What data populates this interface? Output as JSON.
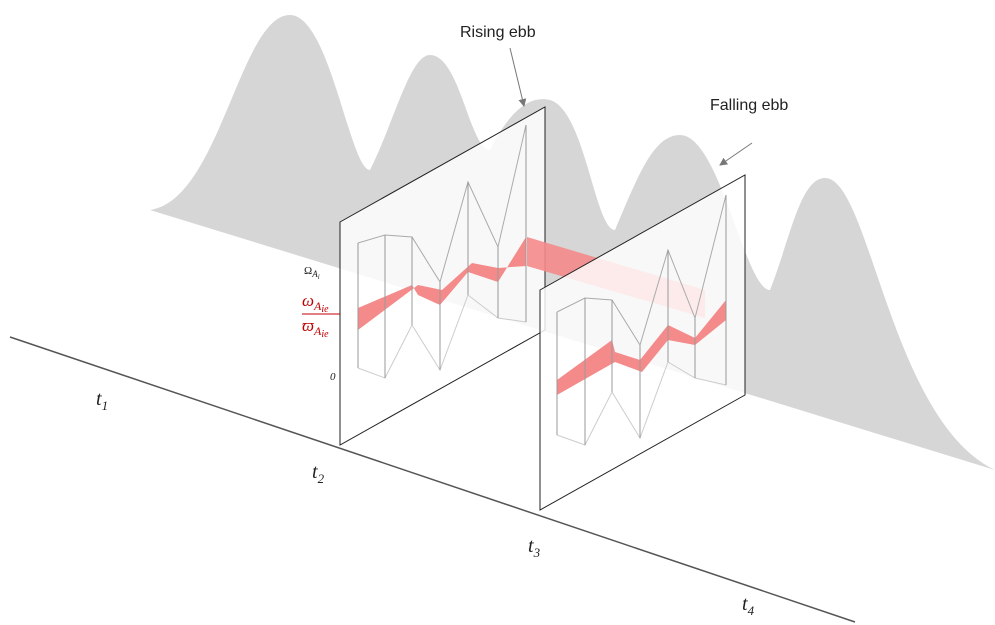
{
  "annotations": {
    "rising": "Rising ebb",
    "falling": "Falling ebb"
  },
  "times": [
    {
      "base": "t",
      "sub": "1"
    },
    {
      "base": "t",
      "sub": "2"
    },
    {
      "base": "t",
      "sub": "3"
    },
    {
      "base": "t",
      "sub": "4"
    }
  ],
  "axis_labels": {
    "upper": {
      "base": "Ω",
      "sub": "A",
      "subsub": "i"
    },
    "omega": {
      "base": "ω",
      "sub": "A",
      "subsub": "ie"
    },
    "varpi": {
      "base": "ϖ",
      "sub": "A",
      "subsub": "ie"
    },
    "zero": "0"
  }
}
